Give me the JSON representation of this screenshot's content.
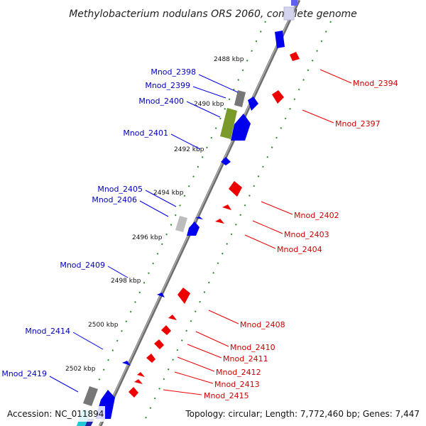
{
  "title": "Methylobacterium nodulans ORS 2060, complete genome",
  "footer": {
    "accession": "Accession: NC_011894",
    "topology": "Topology: circular; Length: 7,772,460 bp; Genes: 7,447"
  },
  "colors": {
    "backbone": "#8c8c8c",
    "forward": "#0000ee",
    "reverse": "#ee0000",
    "forward_label": "#0000bb",
    "reverse_label": "#cc0000",
    "tick_dots": "#2a8a2a",
    "gray_gene": "#777777",
    "olive_gene": "#7a9a2a",
    "cyan_gene": "#20c8d8"
  },
  "kbp_labels": [
    "2488 kbp",
    "2490 kbp",
    "2492 kbp",
    "2494 kbp",
    "2496 kbp",
    "2498 kbp",
    "2500 kbp",
    "2502 kbp"
  ],
  "forward_labels": [
    "Mnod_2398",
    "Mnod_2399",
    "Mnod_2400",
    "Mnod_2401",
    "Mnod_2405",
    "Mnod_2406",
    "Mnod_2409",
    "Mnod_2414",
    "Mnod_2419"
  ],
  "reverse_labels": [
    "Mnod_2394",
    "Mnod_2397",
    "Mnod_2402",
    "Mnod_2403",
    "Mnod_2404",
    "Mnod_2408",
    "Mnod_2410",
    "Mnod_2411",
    "Mnod_2412",
    "Mnod_2413",
    "Mnod_2415"
  ]
}
